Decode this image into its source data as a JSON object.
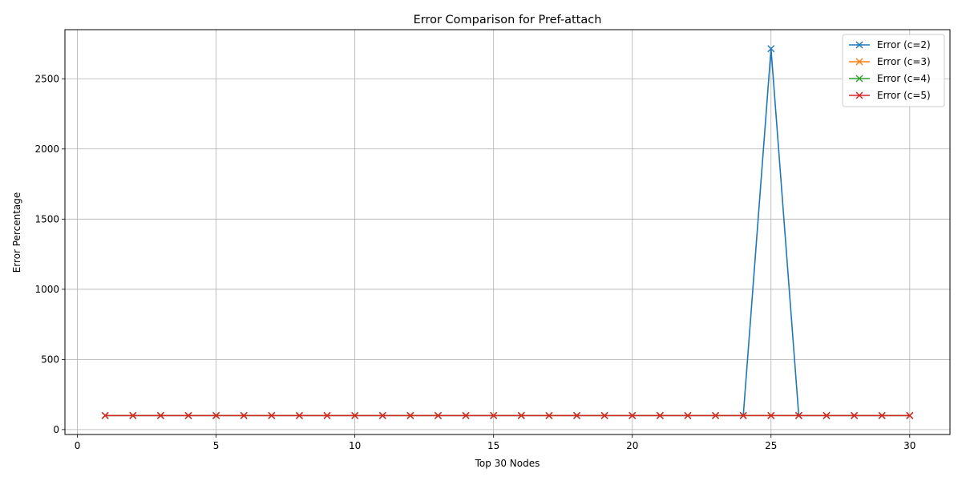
{
  "chart_data": {
    "type": "line",
    "title": "Error Comparison for Pref-attach",
    "xlabel": "Top 30 Nodes",
    "ylabel": "Error Percentage",
    "xlim": [
      -0.45,
      31.45
    ],
    "ylim": [
      -35,
      2850
    ],
    "xticks": [
      0,
      5,
      10,
      15,
      20,
      25,
      30
    ],
    "yticks": [
      0,
      500,
      1000,
      1500,
      2000,
      2500
    ],
    "grid": true,
    "legend_position": "top-right",
    "marker": "x",
    "x": [
      1,
      2,
      3,
      4,
      5,
      6,
      7,
      8,
      9,
      10,
      11,
      12,
      13,
      14,
      15,
      16,
      17,
      18,
      19,
      20,
      21,
      22,
      23,
      24,
      25,
      26,
      27,
      28,
      29,
      30
    ],
    "series": [
      {
        "name": "Error (c=2)",
        "color": "#1f77b4",
        "values": [
          100,
          100,
          100,
          100,
          100,
          100,
          100,
          100,
          100,
          100,
          100,
          100,
          100,
          100,
          100,
          100,
          100,
          100,
          100,
          100,
          100,
          100,
          100,
          100,
          2714,
          100,
          100,
          100,
          100,
          100
        ]
      },
      {
        "name": "Error (c=3)",
        "color": "#ff7f0e",
        "values": [
          100,
          100,
          100,
          100,
          100,
          100,
          100,
          100,
          100,
          100,
          100,
          100,
          100,
          100,
          100,
          100,
          100,
          100,
          100,
          100,
          100,
          100,
          100,
          100,
          100,
          100,
          100,
          100,
          100,
          100
        ]
      },
      {
        "name": "Error (c=4)",
        "color": "#2ca02c",
        "values": [
          100,
          100,
          100,
          100,
          100,
          100,
          100,
          100,
          100,
          100,
          100,
          100,
          100,
          100,
          100,
          100,
          100,
          100,
          100,
          100,
          100,
          100,
          100,
          100,
          100,
          100,
          100,
          100,
          100,
          100
        ]
      },
      {
        "name": "Error (c=5)",
        "color": "#d62728",
        "values": [
          100,
          100,
          100,
          100,
          100,
          100,
          100,
          100,
          100,
          100,
          100,
          100,
          100,
          100,
          100,
          100,
          100,
          100,
          100,
          100,
          100,
          100,
          100,
          100,
          100,
          100,
          100,
          100,
          100,
          100
        ]
      }
    ]
  }
}
